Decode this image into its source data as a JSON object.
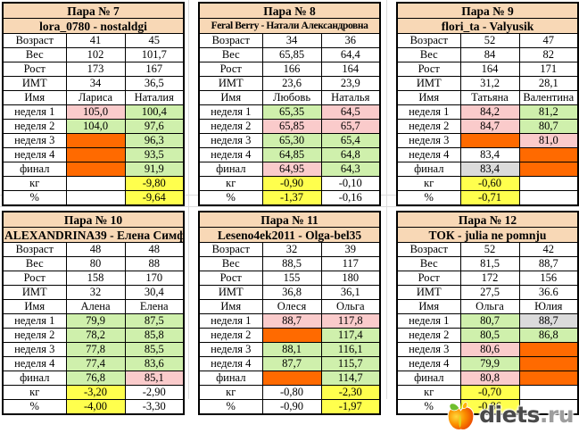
{
  "page": {
    "background": "#FFFFFF",
    "gridline_color": "#DCDCDC"
  },
  "colors": {
    "header_bg": "#F8D8B6",
    "white": "#FFFFFF",
    "pink": "#FACBCB",
    "green": "#CFF0AC",
    "orange": "#FF6A00",
    "yellow": "#FFFF4D",
    "gray": "#DBDBDB",
    "border": "#000000"
  },
  "tables": [
    {
      "title": "Пара № 7",
      "subtitle": "lora_0780 - nostaldgi",
      "rows": [
        {
          "label": "Возраст",
          "v1": "41",
          "c1": "white",
          "v2": "45",
          "c2": "white"
        },
        {
          "label": "Вес",
          "v1": "102",
          "c1": "white",
          "v2": "101,7",
          "c2": "white"
        },
        {
          "label": "Рост",
          "v1": "173",
          "c1": "white",
          "v2": "167",
          "c2": "white"
        },
        {
          "label": "ИМТ",
          "v1": "34",
          "c1": "white",
          "v2": "36,5",
          "c2": "white"
        },
        {
          "label": "Имя",
          "v1": "Лариса",
          "c1": "white",
          "v2": "Наталия",
          "c2": "white"
        },
        {
          "label": "неделя 1",
          "v1": "105,0",
          "c1": "pink",
          "v2": "100,4",
          "c2": "green"
        },
        {
          "label": "неделя 2",
          "v1": "104,0",
          "c1": "green",
          "v2": "97,6",
          "c2": "green"
        },
        {
          "label": "неделя 3",
          "v1": "",
          "c1": "orange",
          "v2": "96,3",
          "c2": "green"
        },
        {
          "label": "неделя 4",
          "v1": "",
          "c1": "orange",
          "v2": "93,5",
          "c2": "green"
        },
        {
          "label": "финал",
          "v1": "",
          "c1": "orange",
          "v2": "91,9",
          "c2": "green"
        },
        {
          "label": "кг",
          "v1": "",
          "c1": "white",
          "v2": "-9,80",
          "c2": "yellow"
        },
        {
          "label": "%",
          "v1": "",
          "c1": "white",
          "v2": "-9,64",
          "c2": "yellow"
        }
      ]
    },
    {
      "title": "Пара № 8",
      "subtitle": "Feral Berry - Натали Александровна",
      "rows": [
        {
          "label": "Возраст",
          "v1": "34",
          "c1": "white",
          "v2": "36",
          "c2": "white"
        },
        {
          "label": "Вес",
          "v1": "65,85",
          "c1": "white",
          "v2": "64,4",
          "c2": "white"
        },
        {
          "label": "Рост",
          "v1": "166",
          "c1": "white",
          "v2": "164",
          "c2": "white"
        },
        {
          "label": "ИМТ",
          "v1": "23,6",
          "c1": "white",
          "v2": "23,9",
          "c2": "white"
        },
        {
          "label": "Имя",
          "v1": "Любовь",
          "c1": "white",
          "v2": "Наталья",
          "c2": "white"
        },
        {
          "label": "неделя 1",
          "v1": "65,35",
          "c1": "green",
          "v2": "64,5",
          "c2": "pink"
        },
        {
          "label": "неделя 2",
          "v1": "65,85",
          "c1": "pink",
          "v2": "65,7",
          "c2": "pink"
        },
        {
          "label": "неделя 3",
          "v1": "65,30",
          "c1": "green",
          "v2": "65,4",
          "c2": "green"
        },
        {
          "label": "неделя 4",
          "v1": "64,85",
          "c1": "green",
          "v2": "64,8",
          "c2": "green"
        },
        {
          "label": "финал",
          "v1": "64,95",
          "c1": "pink",
          "v2": "64,3",
          "c2": "green"
        },
        {
          "label": "кг",
          "v1": "-0,90",
          "c1": "yellow",
          "v2": "-0,10",
          "c2": "white"
        },
        {
          "label": "%",
          "v1": "-1,37",
          "c1": "yellow",
          "v2": "-0,16",
          "c2": "white"
        }
      ]
    },
    {
      "title": "Пара № 9",
      "subtitle": "flori_ta - Valyusik",
      "rows": [
        {
          "label": "Возраст",
          "v1": "52",
          "c1": "white",
          "v2": "47",
          "c2": "white"
        },
        {
          "label": "Вес",
          "v1": "84",
          "c1": "white",
          "v2": "82",
          "c2": "white"
        },
        {
          "label": "Рост",
          "v1": "164",
          "c1": "white",
          "v2": "171",
          "c2": "white"
        },
        {
          "label": "ИМТ",
          "v1": "31,2",
          "c1": "white",
          "v2": "28,1",
          "c2": "white"
        },
        {
          "label": "Имя",
          "v1": "Татьяна",
          "c1": "white",
          "v2": "Валентина",
          "c2": "white"
        },
        {
          "label": "неделя 1",
          "v1": "84,2",
          "c1": "pink",
          "v2": "81,2",
          "c2": "green"
        },
        {
          "label": "неделя 2",
          "v1": "84,7",
          "c1": "pink",
          "v2": "80,7",
          "c2": "green"
        },
        {
          "label": "неделя 3",
          "v1": "",
          "c1": "orange",
          "v2": "81,0",
          "c2": "pink"
        },
        {
          "label": "неделя 4",
          "v1": "83,4",
          "c1": "white",
          "v2": "",
          "c2": "orange"
        },
        {
          "label": "финал",
          "v1": "83,4",
          "c1": "gray",
          "v2": "",
          "c2": "orange"
        },
        {
          "label": "кг",
          "v1": "-0,60",
          "c1": "yellow",
          "v2": "",
          "c2": "white"
        },
        {
          "label": "%",
          "v1": "-0,71",
          "c1": "yellow",
          "v2": "",
          "c2": "white"
        }
      ]
    },
    {
      "title": "Пара № 10",
      "subtitle": "ALEXANDRINA39 - Елена Симф",
      "rows": [
        {
          "label": "Возраст",
          "v1": "48",
          "c1": "white",
          "v2": "48",
          "c2": "white"
        },
        {
          "label": "Вес",
          "v1": "80",
          "c1": "white",
          "v2": "88",
          "c2": "white"
        },
        {
          "label": "Рост",
          "v1": "158",
          "c1": "white",
          "v2": "170",
          "c2": "white"
        },
        {
          "label": "ИМТ",
          "v1": "32",
          "c1": "white",
          "v2": "30,4",
          "c2": "white"
        },
        {
          "label": "Имя",
          "v1": "Алена",
          "c1": "white",
          "v2": "Елена",
          "c2": "white"
        },
        {
          "label": "неделя 1",
          "v1": "79,9",
          "c1": "green",
          "v2": "87,5",
          "c2": "green"
        },
        {
          "label": "неделя 2",
          "v1": "78,2",
          "c1": "green",
          "v2": "85,8",
          "c2": "green"
        },
        {
          "label": "неделя 3",
          "v1": "77,8",
          "c1": "green",
          "v2": "85,5",
          "c2": "green"
        },
        {
          "label": "неделя 4",
          "v1": "77,4",
          "c1": "green",
          "v2": "83,6",
          "c2": "green"
        },
        {
          "label": "финал",
          "v1": "76,8",
          "c1": "green",
          "v2": "85,1",
          "c2": "pink"
        },
        {
          "label": "кг",
          "v1": "-3,20",
          "c1": "yellow",
          "v2": "-2,90",
          "c2": "white"
        },
        {
          "label": "%",
          "v1": "-4,00",
          "c1": "yellow",
          "v2": "-3,30",
          "c2": "white"
        }
      ]
    },
    {
      "title": "Пара № 11",
      "subtitle": "Leseno4ek2011 - Olga-bel35",
      "rows": [
        {
          "label": "Возраст",
          "v1": "32",
          "c1": "white",
          "v2": "39",
          "c2": "white"
        },
        {
          "label": "Вес",
          "v1": "88,5",
          "c1": "white",
          "v2": "117",
          "c2": "white"
        },
        {
          "label": "Рост",
          "v1": "155",
          "c1": "white",
          "v2": "180",
          "c2": "white"
        },
        {
          "label": "ИМТ",
          "v1": "36,8",
          "c1": "white",
          "v2": "36,1",
          "c2": "white"
        },
        {
          "label": "Имя",
          "v1": "Олеся",
          "c1": "white",
          "v2": "Ольга",
          "c2": "white"
        },
        {
          "label": "неделя 1",
          "v1": "88,7",
          "c1": "pink",
          "v2": "117,8",
          "c2": "pink"
        },
        {
          "label": "неделя 2",
          "v1": "",
          "c1": "orange",
          "v2": "117,4",
          "c2": "green"
        },
        {
          "label": "неделя 3",
          "v1": "88,1",
          "c1": "green",
          "v2": "116,1",
          "c2": "green"
        },
        {
          "label": "неделя 4",
          "v1": "87,7",
          "c1": "green",
          "v2": "115,7",
          "c2": "green"
        },
        {
          "label": "финал",
          "v1": "",
          "c1": "orange",
          "v2": "114,7",
          "c2": "green"
        },
        {
          "label": "кг",
          "v1": "-0,80",
          "c1": "white",
          "v2": "-2,30",
          "c2": "yellow"
        },
        {
          "label": "%",
          "v1": "-0,90",
          "c1": "white",
          "v2": "-1,97",
          "c2": "yellow"
        }
      ]
    },
    {
      "title": "Пара № 12",
      "subtitle": "ТОК - julia ne pomnju",
      "rows": [
        {
          "label": "Возраст",
          "v1": "52",
          "c1": "white",
          "v2": "42",
          "c2": "white"
        },
        {
          "label": "Вес",
          "v1": "81,5",
          "c1": "white",
          "v2": "88,7",
          "c2": "white"
        },
        {
          "label": "Рост",
          "v1": "172",
          "c1": "white",
          "v2": "156",
          "c2": "white"
        },
        {
          "label": "ИМТ",
          "v1": "27,5",
          "c1": "white",
          "v2": "36.6",
          "c2": "white"
        },
        {
          "label": "Имя",
          "v1": "Ольга",
          "c1": "white",
          "v2": "Юлия",
          "c2": "white"
        },
        {
          "label": "неделя 1",
          "v1": "80,7",
          "c1": "green",
          "v2": "88,7",
          "c2": "gray"
        },
        {
          "label": "неделя 2",
          "v1": "80,5",
          "c1": "green",
          "v2": "86,8",
          "c2": "green"
        },
        {
          "label": "неделя 3",
          "v1": "80,6",
          "c1": "pink",
          "v2": "",
          "c2": "orange"
        },
        {
          "label": "неделя 4",
          "v1": "79,9",
          "c1": "green",
          "v2": "",
          "c2": "orange"
        },
        {
          "label": "финал",
          "v1": "80,8",
          "c1": "pink",
          "v2": "",
          "c2": "orange"
        },
        {
          "label": "кг",
          "v1": "-0,70",
          "c1": "yellow",
          "v2": "",
          "c2": "white"
        },
        {
          "label": "%",
          "v1": "-0,86",
          "c1": "yellow",
          "v2": "",
          "c2": "white"
        }
      ]
    }
  ],
  "logo": {
    "brand": "diets",
    "domain": ".ru",
    "brand_color": "#4A4A4A",
    "domain_color": "#9E9E9E",
    "apple_icon": "apple-icon"
  }
}
